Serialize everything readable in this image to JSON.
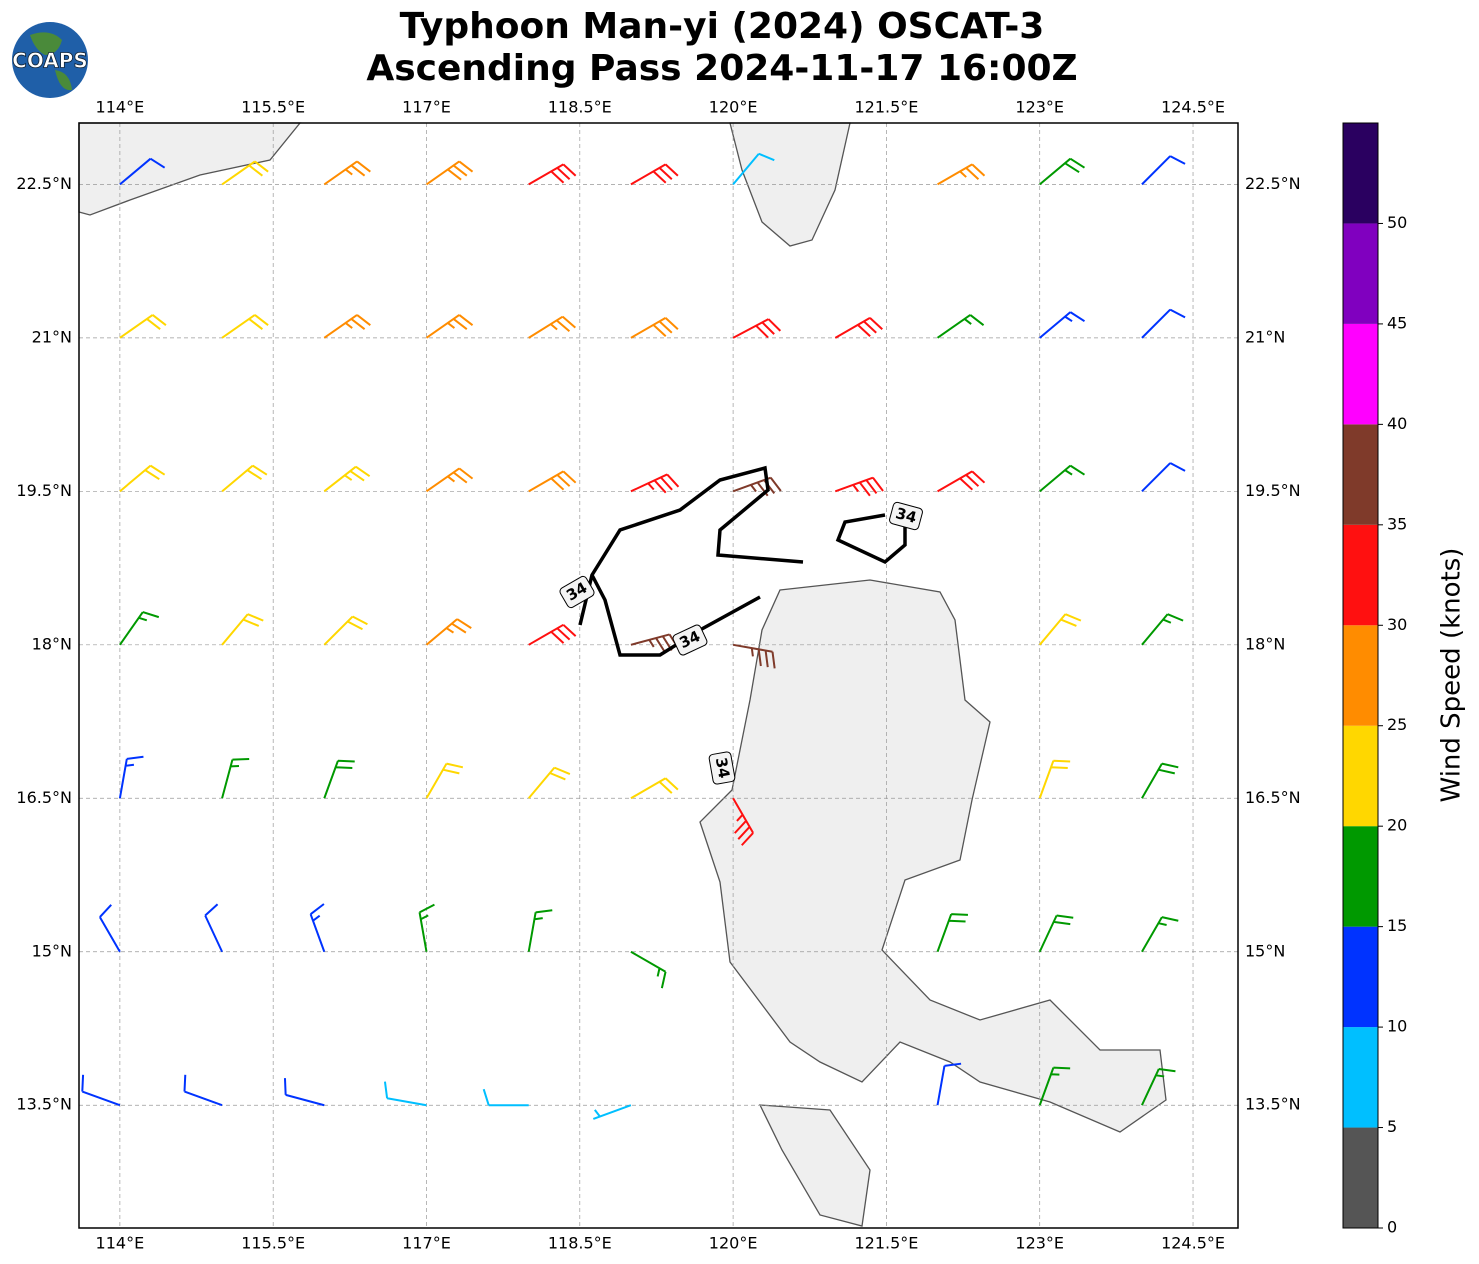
{
  "chart_data": {
    "type": "barbs",
    "title": [
      "Typhoon Man-yi (2024) OSCAT-3",
      "Ascending Pass 2024-11-17 16:00Z"
    ],
    "logo_text": "COAPS",
    "xlim": [
      113.6,
      124.94
    ],
    "ylim": [
      12.3,
      23.1
    ],
    "xticks": [
      {
        "value": 114,
        "label": "114°E"
      },
      {
        "value": 115.5,
        "label": "115.5°E"
      },
      {
        "value": 117,
        "label": "117°E"
      },
      {
        "value": 118.5,
        "label": "118.5°E"
      },
      {
        "value": 120,
        "label": "120°E"
      },
      {
        "value": 121.5,
        "label": "121.5°E"
      },
      {
        "value": 123,
        "label": "123°E"
      },
      {
        "value": 124.5,
        "label": "124.5°E"
      }
    ],
    "yticks": [
      {
        "value": 22.5,
        "label": "22.5°N"
      },
      {
        "value": 21,
        "label": "21°N"
      },
      {
        "value": 19.5,
        "label": "19.5°N"
      },
      {
        "value": 18,
        "label": "18°N"
      },
      {
        "value": 16.5,
        "label": "16.5°N"
      },
      {
        "value": 15,
        "label": "15°N"
      },
      {
        "value": 13.5,
        "label": "13.5°N"
      }
    ],
    "grid": true,
    "contour": {
      "level": 34
    },
    "wind": {
      "lon": [
        114,
        115,
        116,
        117,
        118,
        119,
        120,
        121,
        122,
        123,
        124
      ],
      "lat": [
        22.5,
        21,
        19.5,
        18,
        16.5,
        15,
        13.5
      ],
      "speed": [
        [
          12,
          22,
          27,
          28,
          32,
          30,
          8,
          null,
          27,
          18,
          12
        ],
        [
          22,
          22,
          25,
          27,
          27,
          28,
          30,
          32,
          17,
          13,
          12
        ],
        [
          22,
          22,
          23,
          25,
          28,
          33,
          37,
          33,
          30,
          17,
          12
        ],
        [
          17,
          20,
          22,
          25,
          30,
          37,
          37,
          null,
          null,
          22,
          17
        ],
        [
          14,
          17,
          18,
          22,
          22,
          20,
          33,
          null,
          null,
          22,
          18
        ],
        [
          12,
          12,
          13,
          17,
          16,
          17,
          null,
          null,
          18,
          18,
          17
        ],
        [
          12,
          12,
          10,
          9,
          8,
          7,
          null,
          null,
          12,
          15,
          17
        ]
      ],
      "direction": [
        [
          50,
          55,
          55,
          55,
          60,
          60,
          40,
          null,
          60,
          50,
          45
        ],
        [
          55,
          55,
          55,
          55,
          58,
          60,
          62,
          60,
          55,
          50,
          45
        ],
        [
          50,
          50,
          52,
          55,
          60,
          65,
          70,
          70,
          60,
          50,
          45
        ],
        [
          35,
          40,
          45,
          50,
          60,
          75,
          100,
          null,
          null,
          40,
          40
        ],
        [
          10,
          15,
          20,
          30,
          40,
          60,
          150,
          null,
          null,
          20,
          30
        ],
        [
          330,
          335,
          340,
          350,
          10,
          120,
          null,
          null,
          20,
          25,
          30
        ],
        [
          290,
          290,
          285,
          280,
          270,
          250,
          null,
          null,
          10,
          20,
          25
        ]
      ]
    },
    "colorbar": {
      "label": "Wind Speed (knots)",
      "lim": [
        0,
        55
      ],
      "bounds": [
        0,
        5,
        10,
        15,
        20,
        25,
        30,
        35,
        40,
        45,
        50,
        55
      ],
      "colors": [
        "#555555",
        "#00bfff",
        "#0033ff",
        "#009900",
        "#ffd700",
        "#ff8c00",
        "#ff1010",
        "#7f3a2a",
        "#ff00ff",
        "#8000bf",
        "#2a0060"
      ],
      "ticks": [
        0,
        5,
        10,
        15,
        20,
        25,
        30,
        35,
        40,
        45,
        50
      ]
    }
  }
}
